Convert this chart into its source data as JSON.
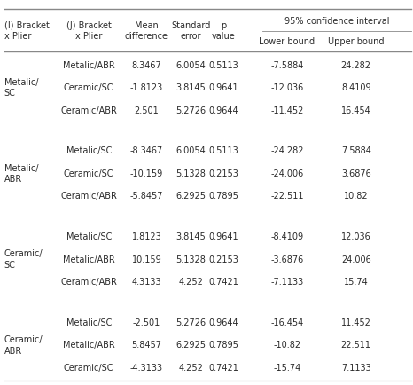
{
  "ci_header": "95% confidence interval",
  "col_headers_left": [
    "(I) Bracket\nx Plier",
    "(J) Bracket\nx Plier",
    "Mean\ndifference",
    "Standard\nerror",
    "p\nvalue"
  ],
  "col_headers_ci": [
    "Lower bound",
    "Upper bound"
  ],
  "groups": [
    {
      "i_label": "Metalic/\nSC",
      "rows": [
        [
          "Metalic/ABR",
          "8.3467",
          "6.0054",
          "0.5113",
          "-7.5884",
          "24.282"
        ],
        [
          "Ceramic/SC",
          "-1.8123",
          "3.8145",
          "0.9641",
          "-12.036",
          "8.4109"
        ],
        [
          "Ceramic/ABR",
          "2.501",
          "5.2726",
          "0.9644",
          "-11.452",
          "16.454"
        ]
      ]
    },
    {
      "i_label": "Metalic/\nABR",
      "rows": [
        [
          "Metalic/SC",
          "-8.3467",
          "6.0054",
          "0.5113",
          "-24.282",
          "7.5884"
        ],
        [
          "Ceramic/SC",
          "-10.159",
          "5.1328",
          "0.2153",
          "-24.006",
          "3.6876"
        ],
        [
          "Ceramic/ABR",
          "-5.8457",
          "6.2925",
          "0.7895",
          "-22.511",
          "10.82"
        ]
      ]
    },
    {
      "i_label": "Ceramic/\nSC",
      "rows": [
        [
          "Metalic/SC",
          "1.8123",
          "3.8145",
          "0.9641",
          "-8.4109",
          "12.036"
        ],
        [
          "Metalic/ABR",
          "10.159",
          "5.1328",
          "0.2153",
          "-3.6876",
          "24.006"
        ],
        [
          "Ceramic/ABR",
          "4.3133",
          "4.252",
          "0.7421",
          "-7.1133",
          "15.74"
        ]
      ]
    },
    {
      "i_label": "Ceramic/\nABR",
      "rows": [
        [
          "Metalic/SC",
          "-2.501",
          "5.2726",
          "0.9644",
          "-16.454",
          "11.452"
        ],
        [
          "Metalic/ABR",
          "5.8457",
          "6.2925",
          "0.7895",
          "-10.82",
          "22.511"
        ],
        [
          "Ceramic/SC",
          "-4.3133",
          "4.252",
          "0.7421",
          "-15.74",
          "7.1133"
        ]
      ]
    }
  ],
  "bg_color": "#ffffff",
  "text_color": "#2a2a2a",
  "line_color": "#888888",
  "fontsize": 7.0,
  "header_fontsize": 7.0
}
